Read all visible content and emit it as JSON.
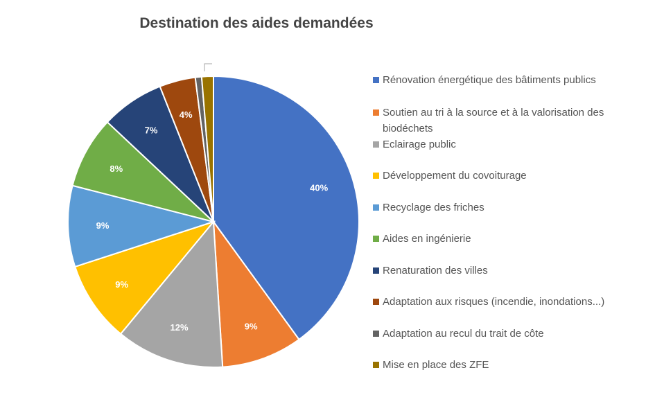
{
  "chart_data": {
    "type": "pie",
    "title": "Destination des aides demandées",
    "slices": [
      {
        "label": "Rénovation énergétique des bâtiments publics",
        "value": 40,
        "display": "40%",
        "color": "#4472C4"
      },
      {
        "label": "Soutien au tri à la source et à la valorisation des biodéchets",
        "value": 9,
        "display": "9%",
        "color": "#ED7D31"
      },
      {
        "label": "Eclairage public",
        "value": 12,
        "display": "12%",
        "color": "#A5A5A5"
      },
      {
        "label": "Développement du covoiturage",
        "value": 9,
        "display": "9%",
        "color": "#FFC000"
      },
      {
        "label": "Recyclage des friches",
        "value": 9,
        "display": "9%",
        "color": "#5B9BD5"
      },
      {
        "label": "Aides en ingénierie",
        "value": 8,
        "display": "8%",
        "color": "#70AD47"
      },
      {
        "label": "Renaturation des villes",
        "value": 7,
        "display": "7%",
        "color": "#264478"
      },
      {
        "label": "Adaptation aux risques (incendie, inondations...)",
        "value": 4,
        "display": "4%",
        "color": "#9E480E"
      },
      {
        "label": "Adaptation au recul du trait de côte",
        "value": 0.7,
        "display": "",
        "color": "#636363"
      },
      {
        "label": "Mise en place des ZFE",
        "value": 1.3,
        "display": "",
        "color": "#997300"
      }
    ],
    "legend_position": "right"
  }
}
